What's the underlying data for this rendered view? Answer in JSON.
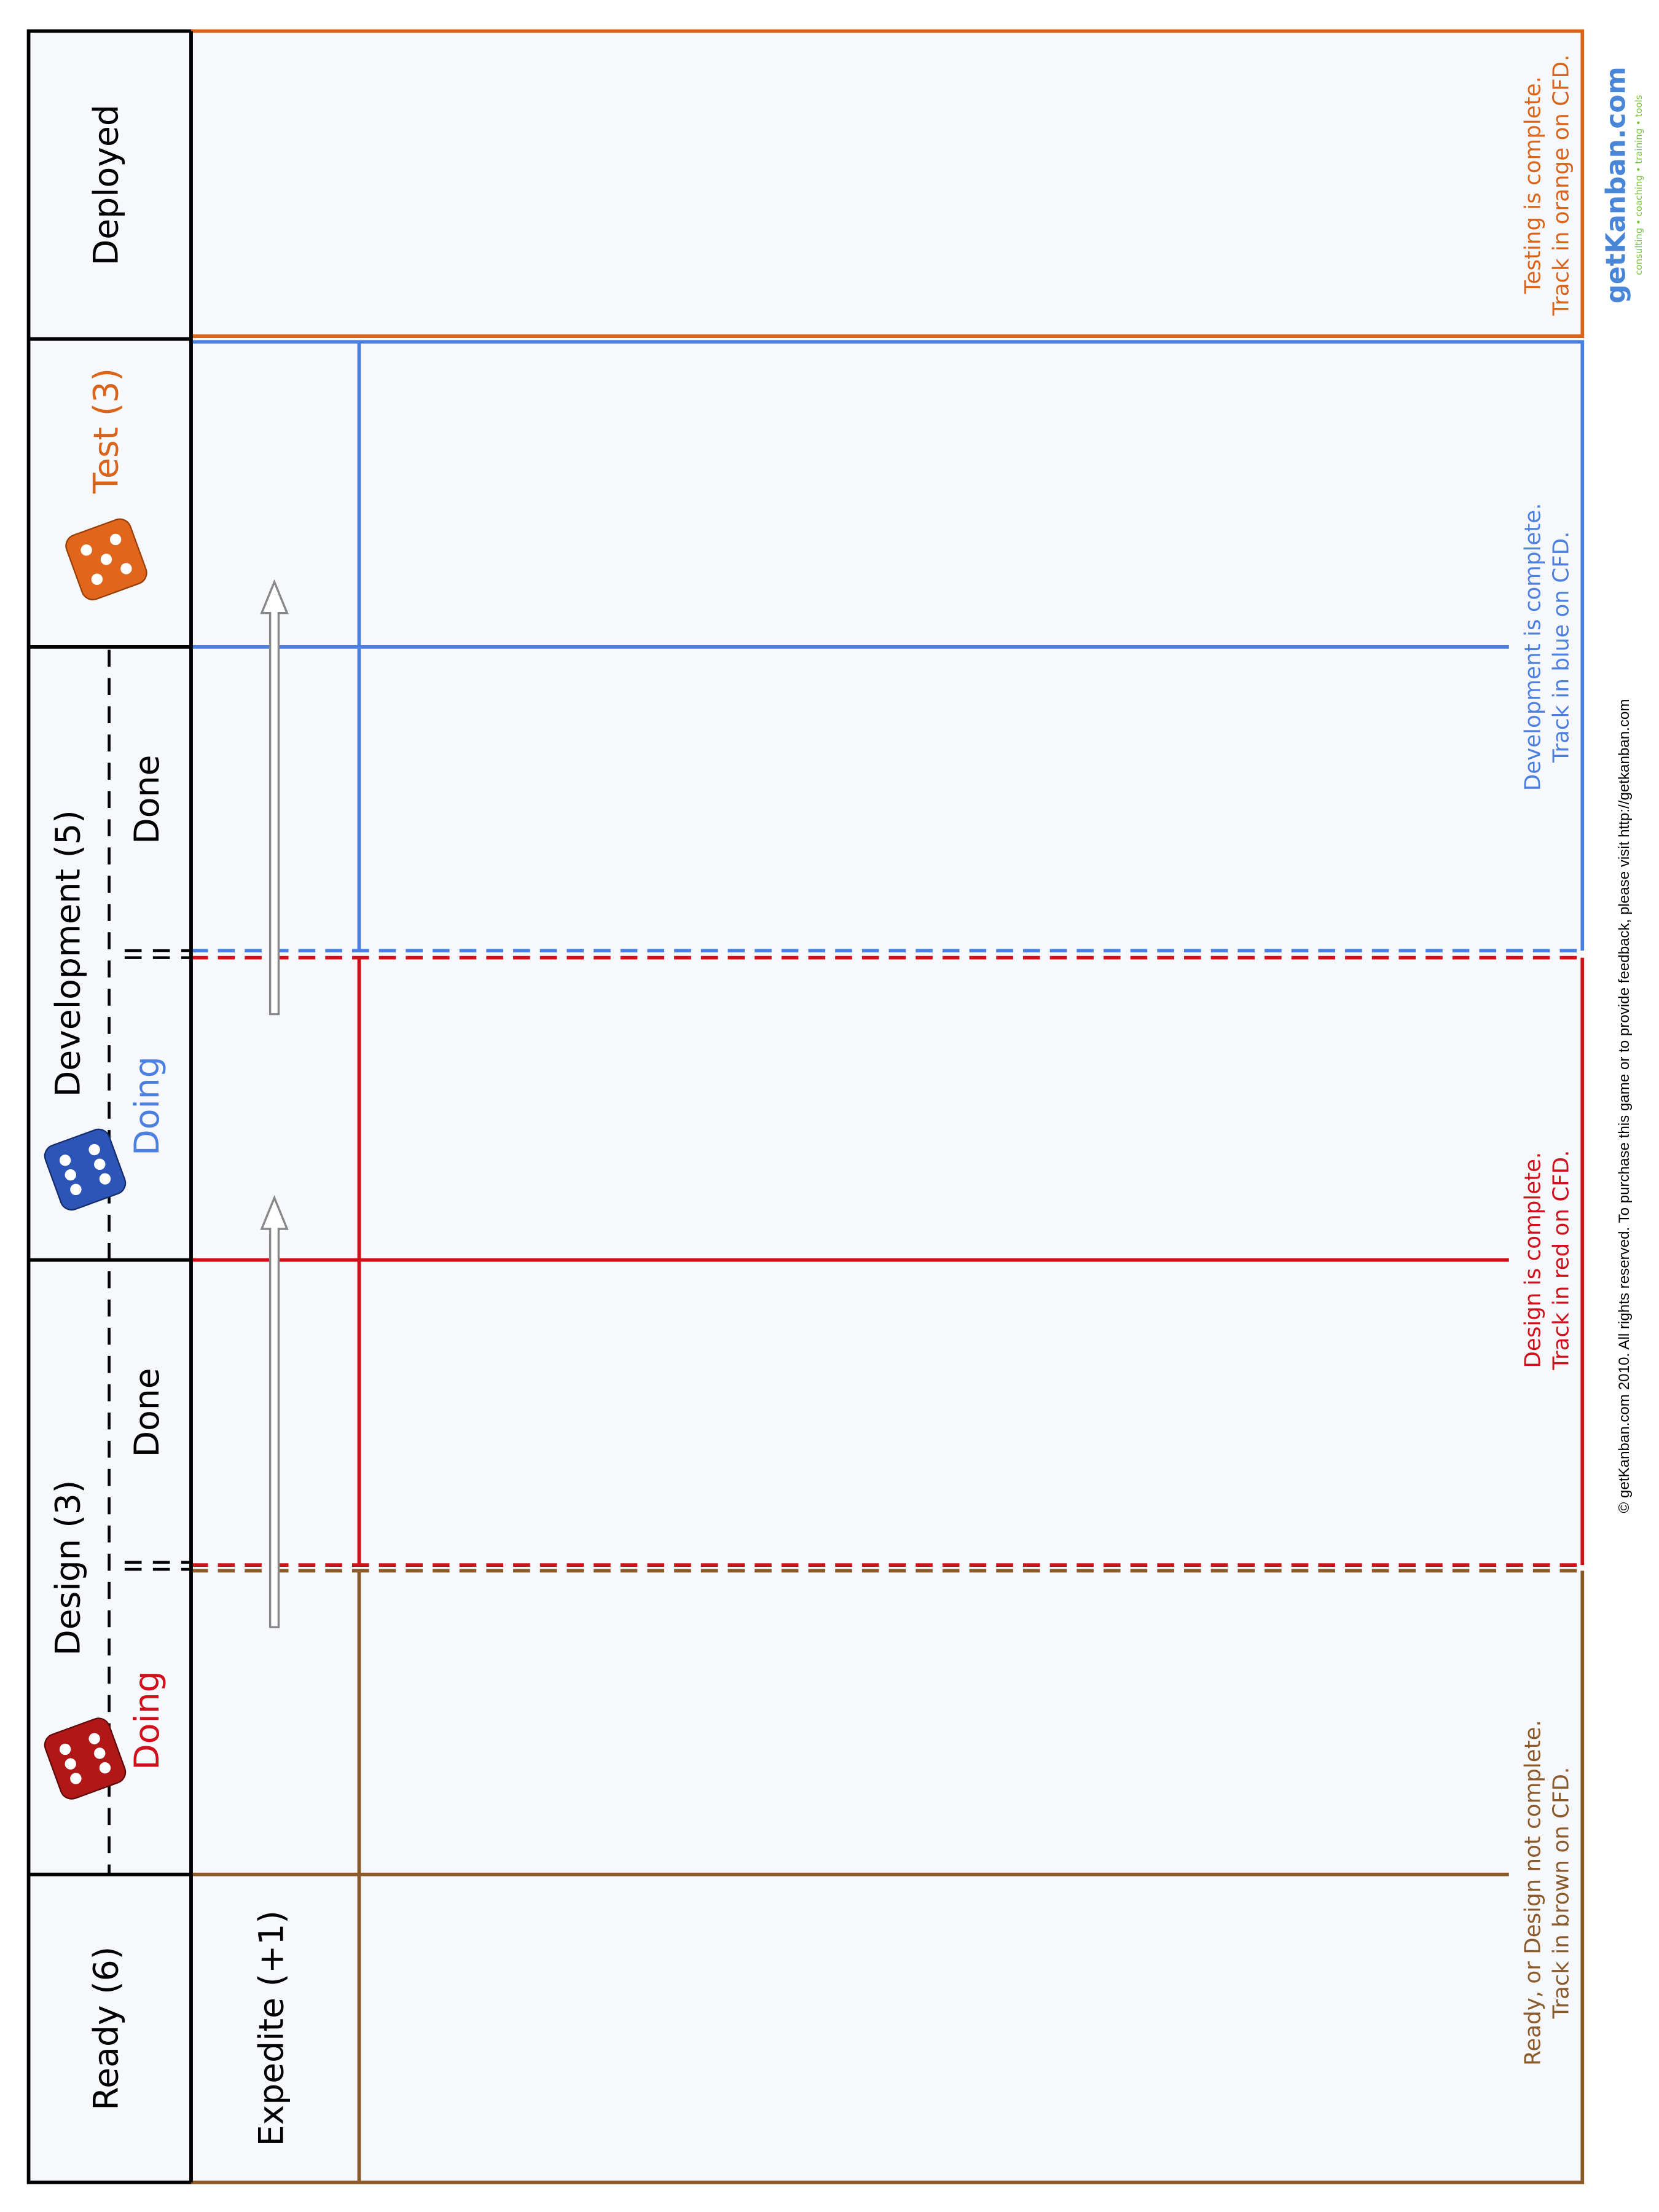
{
  "header": {
    "deployed": "Deployed",
    "test": "Test (3)",
    "development": "Development (5)",
    "development_doing": "Doing",
    "development_done": "Done",
    "design": "Design (3)",
    "design_doing": "Doing",
    "design_done": "Done",
    "ready": "Ready (6)"
  },
  "expedite": "Expedite (+1)",
  "notes": {
    "testing": [
      "Testing is complete.",
      "Track in orange on CFD."
    ],
    "development": [
      "Development is complete.",
      "Track in blue on CFD."
    ],
    "design": [
      "Design is complete.",
      "Track in red on CFD."
    ],
    "ready": [
      "Ready, or Design not complete.",
      "Track in brown on CFD."
    ]
  },
  "footer": "© getKanban.com 2010. All rights reserved.  To purchase this game or to provide feedback, please visit http://getkanban.com",
  "logo": {
    "name": "getKanban.com",
    "tagline": "consulting • coaching • training • tools"
  }
}
